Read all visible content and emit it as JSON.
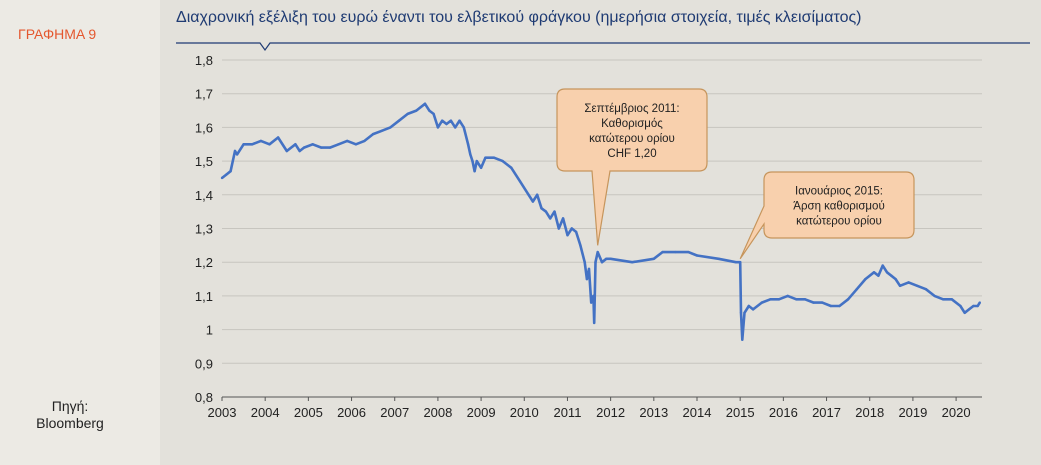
{
  "side_label": "ΓΡΑΦΗΜΑ 9",
  "source": {
    "line1": "Πηγή:",
    "line2": "Bloomberg"
  },
  "colors": {
    "series": "#4472c4",
    "title": "#1f3b73",
    "side_label": "#e4572e",
    "callout_fill": "#f8d0ad",
    "callout_border": "#c6955c"
  },
  "chart_data": {
    "type": "line",
    "title": "Διαχρονική εξέλιξη του ευρώ έναντι του ελβετικού φράγκου  (ημερήσια στοιχεία, τιμές κλεισίματος)",
    "xlabel": "",
    "ylabel": "",
    "xlim": [
      2003.0,
      2020.6
    ],
    "ylim": [
      0.8,
      1.8
    ],
    "yticks": [
      "0,8",
      "0,9",
      "1",
      "1,1",
      "1,2",
      "1,3",
      "1,4",
      "1,5",
      "1,6",
      "1,7",
      "1,8"
    ],
    "xticks": [
      "2003",
      "2004",
      "2005",
      "2006",
      "2007",
      "2008",
      "2009",
      "2010",
      "2011",
      "2012",
      "2013",
      "2014",
      "2015",
      "2016",
      "2017",
      "2018",
      "2019",
      "2020"
    ],
    "grid": true,
    "series": [
      {
        "x": [
          2003.0,
          2003.1,
          2003.2,
          2003.3,
          2003.35,
          2003.5,
          2003.7,
          2003.9,
          2004.1,
          2004.3,
          2004.5,
          2004.7,
          2004.8,
          2004.9,
          2005.1,
          2005.3,
          2005.5,
          2005.7,
          2005.9,
          2006.1,
          2006.3,
          2006.5,
          2006.7,
          2006.9,
          2007.1,
          2007.3,
          2007.5,
          2007.7,
          2007.8,
          2007.9,
          2008.0,
          2008.1,
          2008.2,
          2008.3,
          2008.4,
          2008.5,
          2008.6,
          2008.7,
          2008.75,
          2008.8,
          2008.85,
          2008.9,
          2009.0,
          2009.1,
          2009.3,
          2009.5,
          2009.7,
          2009.9,
          2010.1,
          2010.2,
          2010.3,
          2010.4,
          2010.5,
          2010.6,
          2010.7,
          2010.8,
          2010.9,
          2011.0,
          2011.1,
          2011.2,
          2011.3,
          2011.4,
          2011.45,
          2011.5,
          2011.55,
          2011.6,
          2011.62,
          2011.65,
          2011.7,
          2011.8,
          2011.9,
          2012.0,
          2012.5,
          2013.0,
          2013.2,
          2013.5,
          2013.8,
          2014.0,
          2014.5,
          2014.9,
          2015.0,
          2015.02,
          2015.05,
          2015.1,
          2015.2,
          2015.3,
          2015.5,
          2015.7,
          2015.9,
          2016.1,
          2016.3,
          2016.5,
          2016.7,
          2016.9,
          2017.1,
          2017.3,
          2017.5,
          2017.7,
          2017.9,
          2018.1,
          2018.2,
          2018.3,
          2018.4,
          2018.5,
          2018.6,
          2018.7,
          2018.9,
          2019.1,
          2019.3,
          2019.5,
          2019.7,
          2019.9,
          2020.1,
          2020.2,
          2020.3,
          2020.4,
          2020.5,
          2020.55
        ],
        "y": [
          1.45,
          1.46,
          1.47,
          1.53,
          1.52,
          1.55,
          1.55,
          1.56,
          1.55,
          1.57,
          1.53,
          1.55,
          1.53,
          1.54,
          1.55,
          1.54,
          1.54,
          1.55,
          1.56,
          1.55,
          1.56,
          1.58,
          1.59,
          1.6,
          1.62,
          1.64,
          1.65,
          1.67,
          1.65,
          1.64,
          1.6,
          1.62,
          1.61,
          1.62,
          1.6,
          1.62,
          1.6,
          1.55,
          1.52,
          1.5,
          1.47,
          1.5,
          1.48,
          1.51,
          1.51,
          1.5,
          1.48,
          1.44,
          1.4,
          1.38,
          1.4,
          1.36,
          1.35,
          1.33,
          1.35,
          1.3,
          1.33,
          1.28,
          1.3,
          1.29,
          1.25,
          1.2,
          1.15,
          1.18,
          1.08,
          1.1,
          1.02,
          1.2,
          1.23,
          1.2,
          1.21,
          1.21,
          1.2,
          1.21,
          1.23,
          1.23,
          1.23,
          1.22,
          1.21,
          1.2,
          1.2,
          1.05,
          0.97,
          1.05,
          1.07,
          1.06,
          1.08,
          1.09,
          1.09,
          1.1,
          1.09,
          1.09,
          1.08,
          1.08,
          1.07,
          1.07,
          1.09,
          1.12,
          1.15,
          1.17,
          1.16,
          1.19,
          1.17,
          1.16,
          1.15,
          1.13,
          1.14,
          1.13,
          1.12,
          1.1,
          1.09,
          1.09,
          1.07,
          1.05,
          1.06,
          1.07,
          1.07,
          1.08
        ]
      }
    ],
    "annotations": [
      {
        "lines": [
          "Σεπτέμβριος 2011:",
          "Καθορισμός",
          "κατώτερου ορίου",
          "CHF 1,20"
        ],
        "x": 2011.7,
        "y": 1.25
      },
      {
        "lines": [
          "Ιανουάριος 2015:",
          "Άρση καθορισμού",
          "κατώτερου ορίου"
        ],
        "x": 2015.0,
        "y": 1.21
      }
    ]
  }
}
